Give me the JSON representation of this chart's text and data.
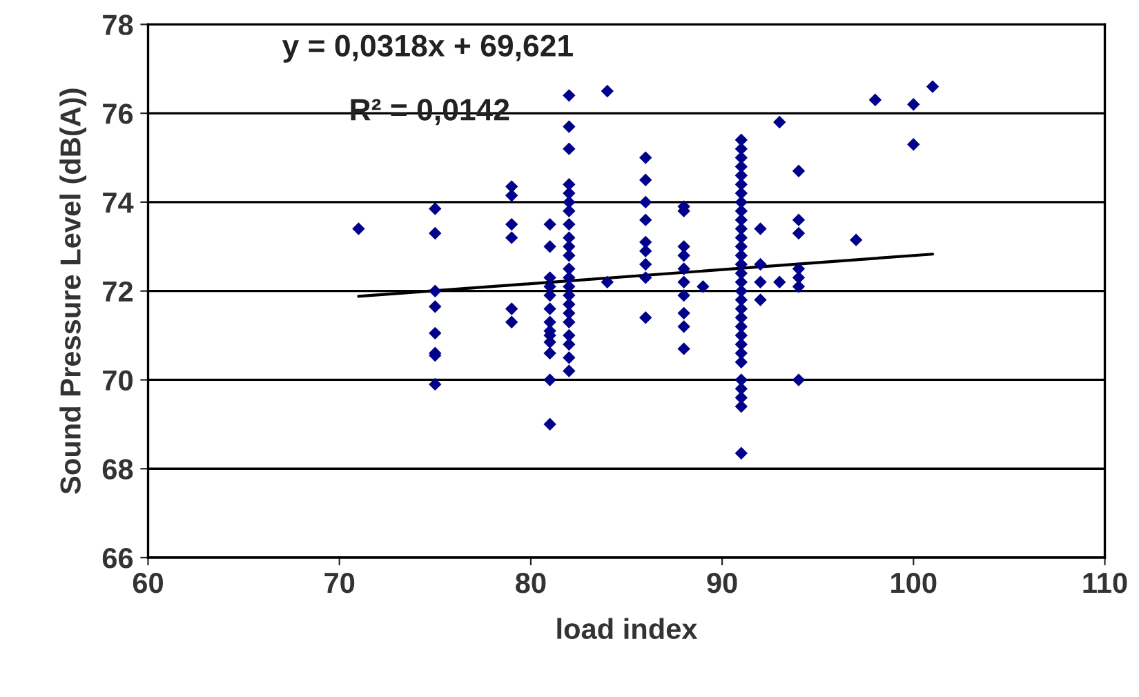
{
  "chart_data": {
    "type": "scatter",
    "xlabel": "load index",
    "ylabel": "Sound Pressure Level (dB(A))",
    "xlim": [
      60,
      110
    ],
    "xticks": [
      60,
      70,
      80,
      90,
      100,
      110
    ],
    "ylim": [
      66,
      78
    ],
    "yticks": [
      66,
      68,
      70,
      72,
      74,
      76,
      78
    ],
    "grid": "y",
    "marker": "diamond",
    "annotations": [
      "y = 0,0318x + 69,621",
      "R² = 0,0142"
    ],
    "series": [
      {
        "color": "#00008b",
        "x": [
          71,
          75,
          75,
          75,
          75,
          75,
          75,
          75,
          75,
          79,
          79,
          79,
          79,
          79,
          79,
          81,
          81,
          81,
          81,
          81,
          81,
          81,
          81,
          81,
          81,
          81,
          81,
          81,
          82,
          82,
          82,
          82,
          82,
          82,
          82,
          82,
          82,
          82,
          82,
          82,
          82,
          82,
          82,
          82,
          82,
          82,
          82,
          82,
          82,
          82,
          84,
          84,
          86,
          86,
          86,
          86,
          86,
          86,
          86,
          86,
          86,
          88,
          88,
          88,
          88,
          88,
          88,
          88,
          88,
          88,
          88,
          89,
          91,
          91,
          91,
          91,
          91,
          91,
          91,
          91,
          91,
          91,
          91,
          91,
          91,
          91,
          91,
          91,
          91,
          91,
          91,
          91,
          91,
          91,
          91,
          91,
          91,
          91,
          91,
          91,
          91,
          91,
          91,
          92,
          92,
          92,
          92,
          93,
          93,
          94,
          94,
          94,
          94,
          94,
          94,
          94,
          97,
          98,
          100,
          100,
          101
        ],
        "values": [
          73.4,
          73.85,
          73.3,
          72.0,
          71.65,
          71.05,
          70.6,
          70.55,
          69.9,
          74.35,
          74.15,
          73.5,
          73.2,
          71.6,
          71.3,
          73.5,
          73.0,
          72.3,
          72.1,
          71.9,
          71.6,
          71.3,
          71.1,
          71.0,
          70.85,
          70.6,
          70.0,
          69.0,
          76.4,
          75.7,
          75.2,
          74.4,
          74.2,
          74.0,
          73.8,
          73.5,
          73.2,
          73.0,
          72.8,
          72.5,
          72.3,
          72.1,
          71.9,
          71.7,
          71.5,
          71.3,
          71.0,
          70.8,
          70.5,
          70.2,
          76.5,
          72.2,
          75.0,
          74.5,
          74.0,
          73.6,
          73.1,
          72.9,
          72.6,
          72.3,
          71.4,
          73.9,
          73.8,
          73.0,
          72.8,
          72.5,
          72.2,
          71.9,
          71.5,
          71.2,
          70.7,
          72.1,
          75.4,
          75.2,
          75.0,
          74.8,
          74.6,
          74.4,
          74.2,
          74.0,
          73.8,
          73.6,
          73.4,
          73.2,
          73.0,
          72.8,
          72.6,
          72.4,
          72.2,
          72.0,
          71.8,
          71.6,
          71.4,
          71.2,
          71.0,
          70.8,
          70.6,
          70.4,
          70.0,
          69.8,
          69.6,
          69.4,
          68.35,
          73.4,
          72.6,
          72.2,
          71.8,
          75.8,
          72.2,
          74.7,
          73.6,
          73.3,
          72.5,
          72.3,
          72.1,
          70.0,
          73.15,
          76.3,
          76.2,
          75.3,
          76.6
        ]
      },
      {
        "type": "line",
        "color": "#000000",
        "marker": "none",
        "x": [
          71,
          101
        ],
        "values": [
          71.88,
          72.83
        ]
      }
    ]
  }
}
